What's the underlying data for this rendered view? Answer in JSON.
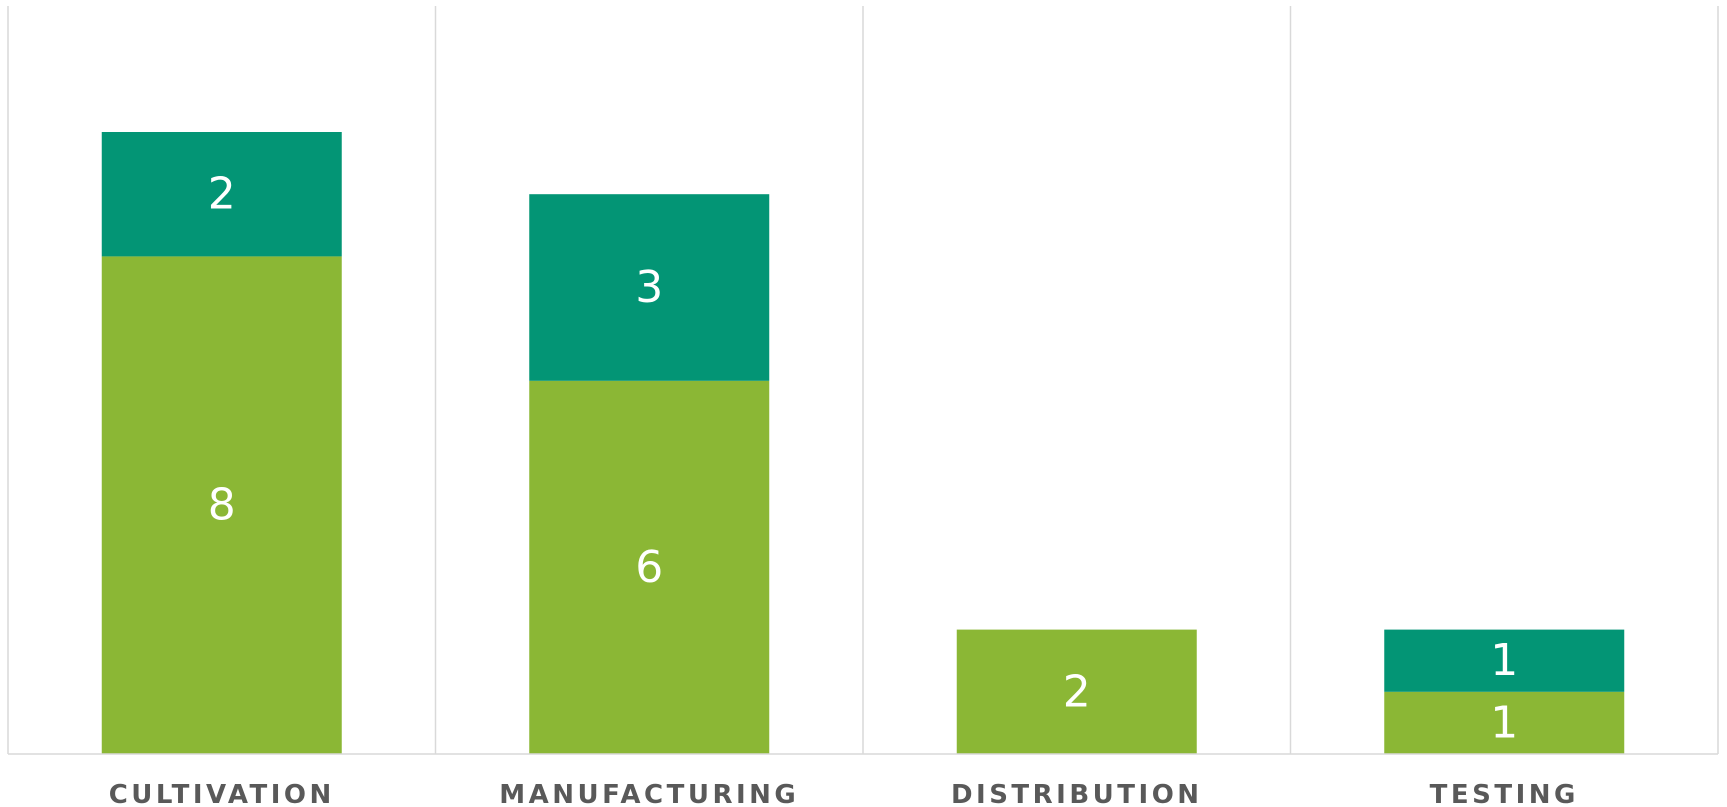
{
  "chart_data": {
    "type": "bar",
    "stacked": true,
    "categories": [
      "CULTIVATION",
      "MANUFACTURING",
      "DISTRIBUTION",
      "TESTING"
    ],
    "series": [
      {
        "values": [
          8,
          6,
          2,
          1
        ],
        "color": "#8BB735"
      },
      {
        "values": [
          2,
          3,
          0,
          1
        ],
        "color": "#039575"
      }
    ],
    "data_labels": [
      [
        "8",
        "6",
        "2",
        "1"
      ],
      [
        "2",
        "3",
        "",
        "1"
      ]
    ],
    "ylim": [
      0,
      12
    ],
    "grid": "vertical category separators",
    "legend": "none",
    "colors": {
      "separator": "#d9d9d9",
      "category_text": "#595959",
      "data_label_text": "#ffffff"
    }
  }
}
